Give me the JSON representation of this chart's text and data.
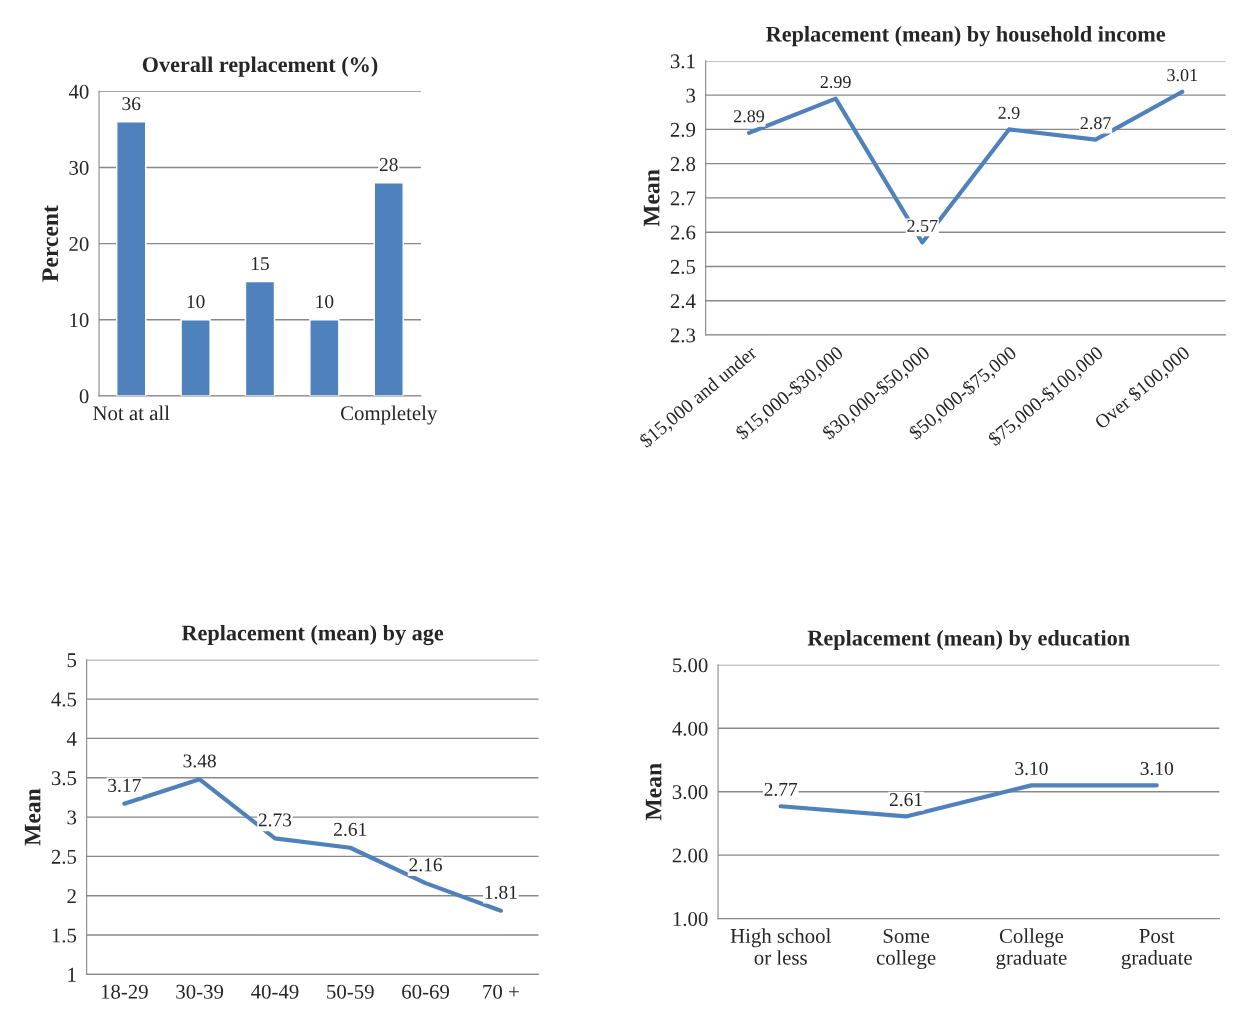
{
  "chart_data": [
    {
      "type": "bar",
      "title": "Overall replacement (%)",
      "ylabel": "Percent",
      "categories": [
        "Not at all",
        null,
        null,
        null,
        "Completely"
      ],
      "values": [
        36,
        10,
        15,
        10,
        28
      ],
      "color": "#4f81bd",
      "ylim": [
        0,
        40
      ],
      "yticks": [
        0,
        10,
        20,
        30,
        40
      ],
      "grid": "y",
      "data_labels": true
    },
    {
      "type": "line",
      "title": "Replacement (mean) by household income",
      "ylabel": "Mean",
      "categories": [
        "$15,000 and under",
        "$15,000-$30,000",
        "$30,000-$50,000",
        "$50,000-$75,000",
        "$75,000-$100,000",
        "Over $100,000"
      ],
      "values": [
        2.89,
        2.99,
        2.57,
        2.9,
        2.87,
        3.01
      ],
      "color": "#4f81bd",
      "ylim": [
        2.3,
        3.1
      ],
      "yticks": [
        2.3,
        2.4,
        2.5,
        2.6,
        2.7,
        2.8,
        2.9,
        3,
        3.1
      ],
      "grid": "y",
      "data_labels": true
    },
    {
      "type": "line",
      "title": "Replacement (mean) by age",
      "ylabel": "Mean",
      "categories": [
        "18-29",
        "30-39",
        "40-49",
        "50-59",
        "60-69",
        "70 +"
      ],
      "values": [
        3.17,
        3.48,
        2.73,
        2.61,
        2.16,
        1.81
      ],
      "color": "#4f81bd",
      "ylim": [
        1,
        5
      ],
      "yticks": [
        1,
        1.5,
        2,
        2.5,
        3,
        3.5,
        4,
        4.5,
        5
      ],
      "grid": "y",
      "data_labels": true
    },
    {
      "type": "line",
      "title": "Replacement (mean) by education",
      "ylabel": "Mean",
      "categories": [
        "High school\nor less",
        "Some\ncollege",
        "College\ngraduate",
        "Post\ngraduate"
      ],
      "values": [
        2.77,
        2.61,
        3.1,
        3.1
      ],
      "value_labels": [
        "2.77",
        "2.61",
        "3.10",
        "3.10"
      ],
      "color": "#4f81bd",
      "ylim": [
        1,
        5
      ],
      "yticks": [
        {
          "value": 1,
          "label": "1.00"
        },
        {
          "value": 2,
          "label": "2.00"
        },
        {
          "value": 3,
          "label": "3.00"
        },
        {
          "value": 4,
          "label": "4.00"
        },
        {
          "value": 5,
          "label": "5.00"
        }
      ],
      "grid": "y"
    }
  ]
}
